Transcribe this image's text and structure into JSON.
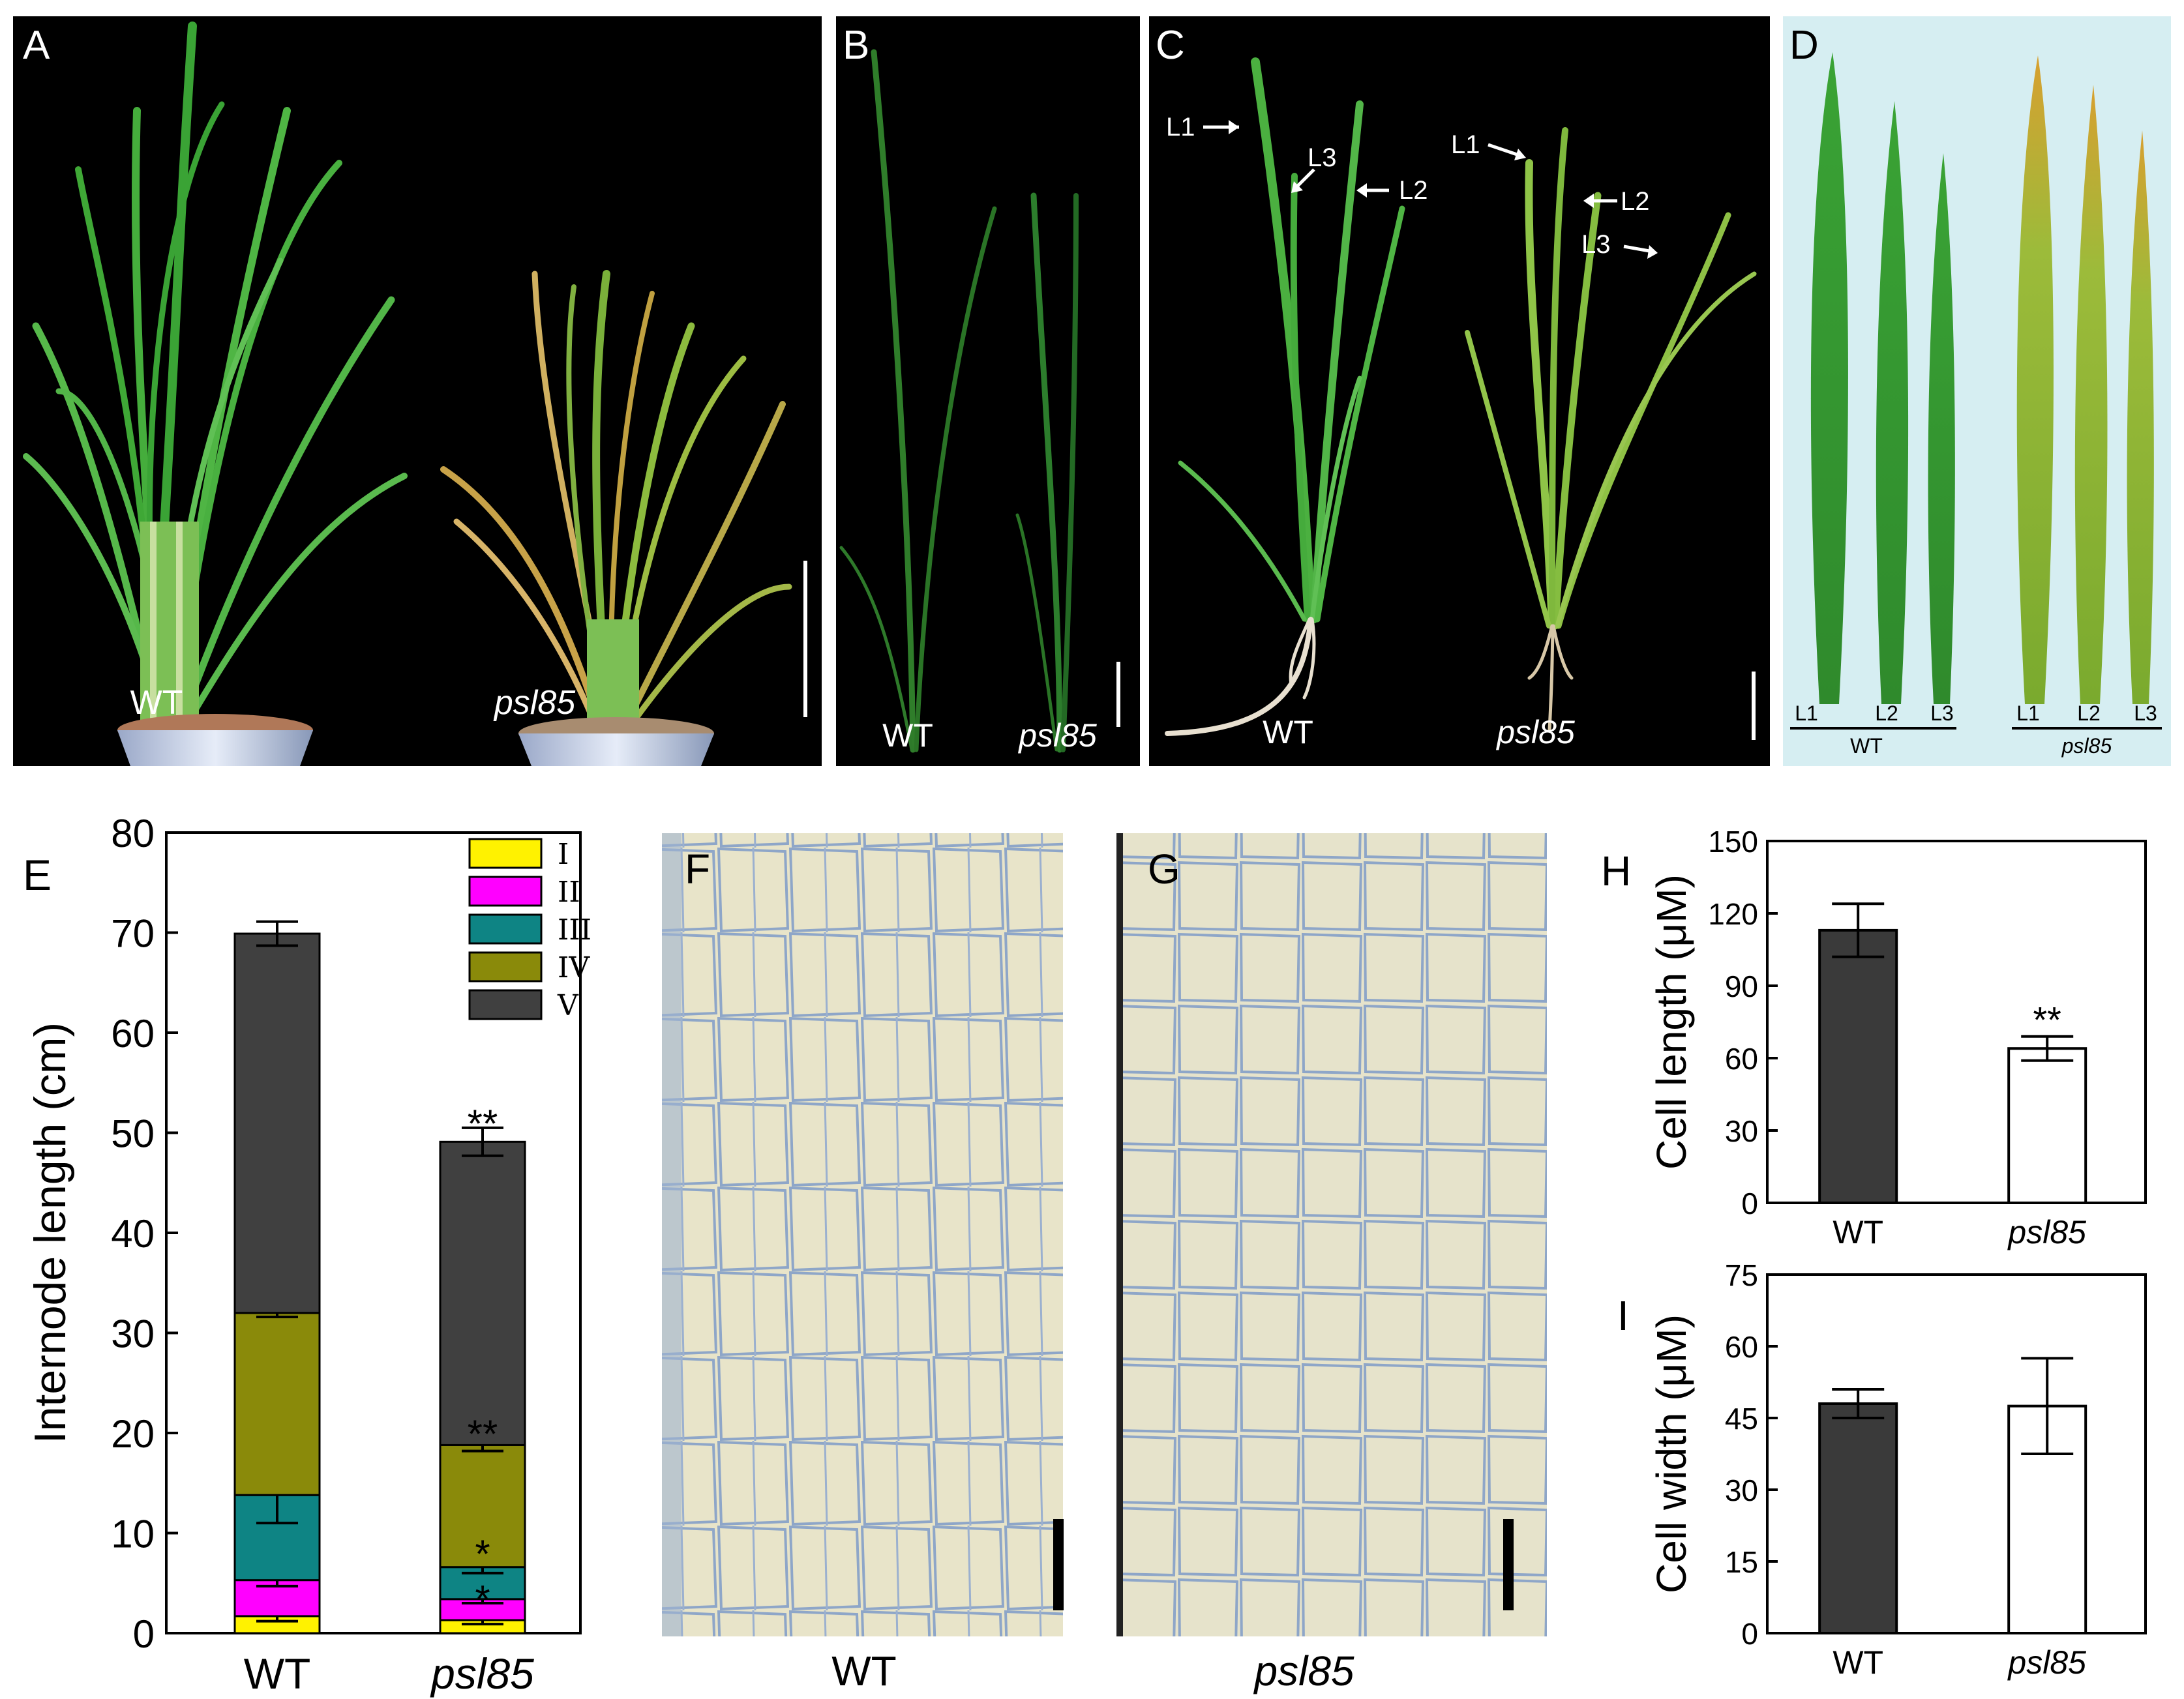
{
  "panels": {
    "A": {
      "label": "A",
      "wt": "WT",
      "mut": "psl85"
    },
    "B": {
      "label": "B",
      "wt": "WT",
      "mut": "psl85"
    },
    "C": {
      "label": "C",
      "wt": "WT",
      "mut": "psl85",
      "arrows_wt": [
        "L1",
        "L3",
        "L2"
      ],
      "arrows_mut": [
        "L1",
        "L2",
        "L3"
      ]
    },
    "D": {
      "label": "D",
      "leaf_labels": [
        "L1",
        "L2",
        "L3",
        "L1",
        "L2",
        "L3"
      ],
      "wt": "WT",
      "mut": "psl85"
    },
    "F": {
      "label": "F",
      "caption": "WT"
    },
    "G": {
      "label": "G",
      "caption": "psl85"
    }
  },
  "colors": {
    "black_bg": "#000000",
    "leaf_bg": "#d6eef2",
    "micro_bg": "#e7e3c8",
    "micro_line": "#8ea6c8",
    "bar_dark": "#3a3a3a",
    "I": "#fff200",
    "II": "#ff00ff",
    "III": "#0e8484",
    "IV": "#8a8a0a",
    "V": "#404040"
  },
  "chart_data": [
    {
      "panel": "E",
      "type": "bar",
      "stacked": true,
      "ylabel": "Internode length (cm)",
      "ylim": [
        0,
        80
      ],
      "yticks": [
        0,
        10,
        20,
        30,
        40,
        50,
        60,
        70,
        80
      ],
      "categories": [
        "WT",
        "psl85"
      ],
      "series": [
        {
          "name": "I",
          "values": [
            1.7,
            1.3
          ],
          "errors": [
            0.5,
            0.4
          ]
        },
        {
          "name": "II",
          "values": [
            3.6,
            2.1
          ],
          "errors": [
            0.6,
            0.4
          ]
        },
        {
          "name": "III",
          "values": [
            8.5,
            3.2
          ],
          "errors": [
            2.8,
            0.6
          ]
        },
        {
          "name": "IV",
          "values": [
            18.2,
            12.2
          ],
          "errors": [
            0.4,
            0.6
          ]
        },
        {
          "name": "V",
          "values": [
            37.9,
            30.3
          ],
          "errors": [
            1.2,
            1.4
          ]
        }
      ],
      "annotations": [
        {
          "category": "psl85",
          "y": 51.0,
          "text": "**"
        },
        {
          "category": "psl85",
          "y": 20.0,
          "text": "**"
        },
        {
          "category": "psl85",
          "y": 8.0,
          "text": "*"
        },
        {
          "category": "psl85",
          "y": 3.5,
          "text": "*"
        }
      ],
      "legend": "top-right"
    },
    {
      "panel": "H",
      "type": "bar",
      "ylabel": "Cell length (μM)",
      "ylim": [
        0,
        150
      ],
      "yticks": [
        0,
        30,
        60,
        90,
        120,
        150
      ],
      "categories": [
        "WT",
        "psl85"
      ],
      "values": [
        113,
        64
      ],
      "errors": [
        11,
        5
      ],
      "annotations": [
        {
          "category": "psl85",
          "text": "**"
        }
      ]
    },
    {
      "panel": "I",
      "type": "bar",
      "ylabel": "Cell width (μM)",
      "ylim": [
        0,
        75
      ],
      "yticks": [
        0,
        15,
        30,
        45,
        60,
        75
      ],
      "categories": [
        "WT",
        "psl85"
      ],
      "values": [
        48,
        47.5
      ],
      "errors": [
        3,
        10
      ]
    }
  ]
}
